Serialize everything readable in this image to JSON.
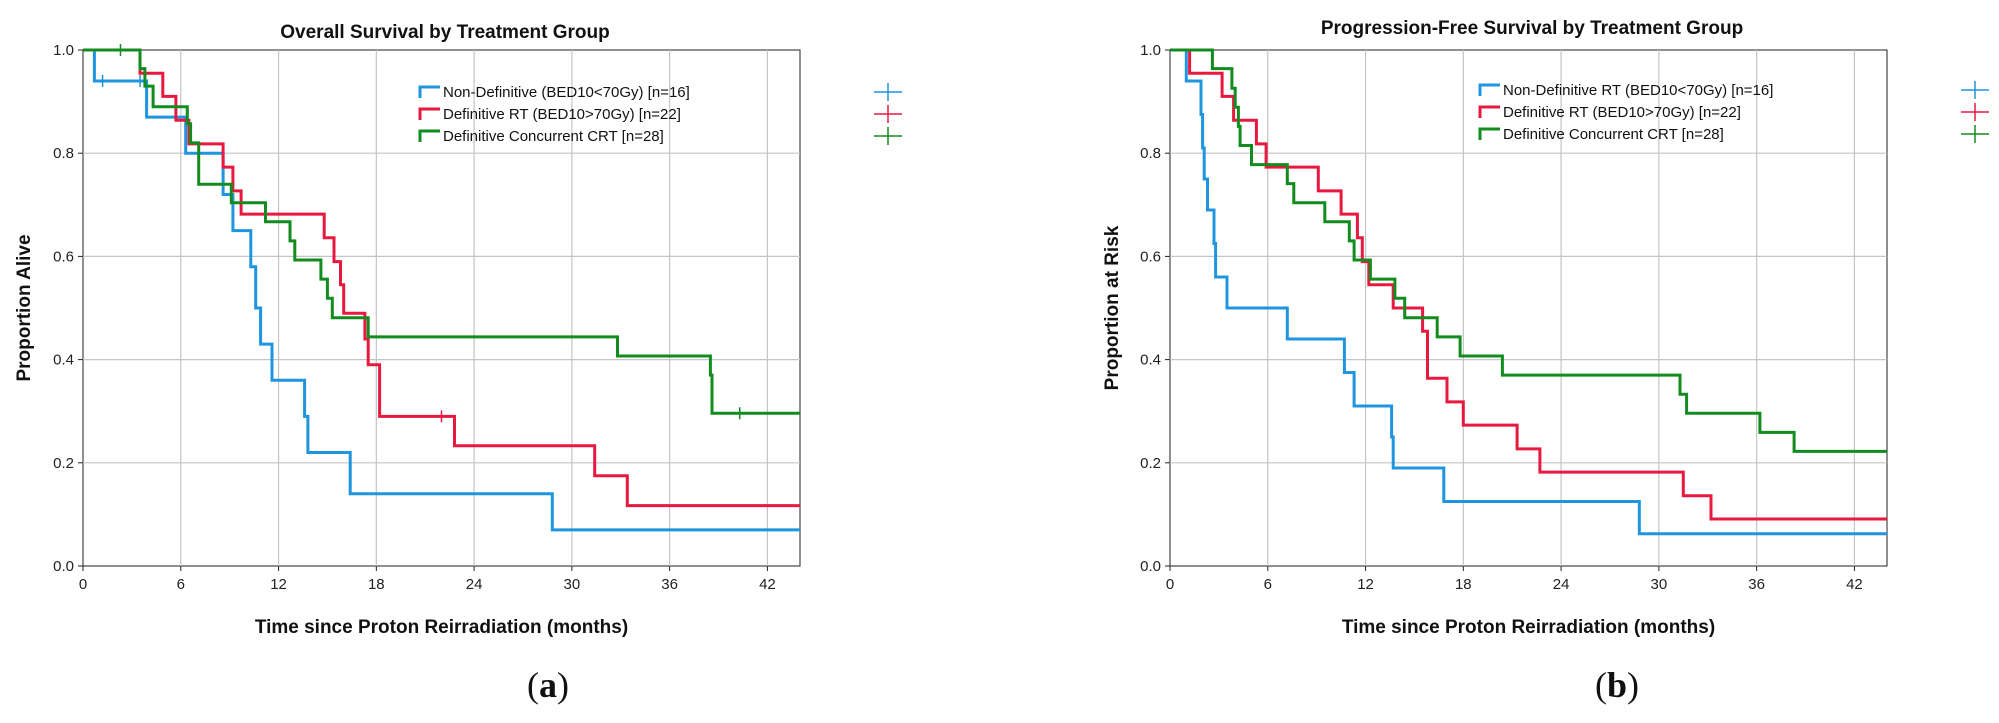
{
  "chart_data": [
    {
      "type": "line",
      "subtype": "kaplan-meier step",
      "caption_letter": "a",
      "title": "Overall Survival by Treatment Group",
      "xlabel": "Time since Proton Reirradiation (months)",
      "ylabel": "Proportion Alive",
      "xlim": [
        0,
        44
      ],
      "ylim": [
        0,
        1
      ],
      "xticks": [
        0,
        6,
        12,
        18,
        24,
        30,
        36,
        42
      ],
      "yticks": [
        "0.0",
        "0.2",
        "0.4",
        "0.6",
        "0.8",
        "1.0"
      ],
      "grid": true,
      "legend_position": "top-right",
      "series": [
        {
          "name": "Non-Definitive (BED10<70Gy) [n=16]",
          "color": "#1f95e0",
          "steps": [
            [
              0,
              1.0
            ],
            [
              0.7,
              0.94
            ],
            [
              3.9,
              0.87
            ],
            [
              6.3,
              0.8
            ],
            [
              8.6,
              0.72
            ],
            [
              9.2,
              0.65
            ],
            [
              10.3,
              0.58
            ],
            [
              10.6,
              0.5
            ],
            [
              10.9,
              0.43
            ],
            [
              11.6,
              0.36
            ],
            [
              13.6,
              0.29
            ],
            [
              13.8,
              0.22
            ],
            [
              16.4,
              0.14
            ],
            [
              28.8,
              0.07
            ],
            [
              44,
              0.07
            ]
          ],
          "censored": [
            [
              1.2,
              0.94
            ],
            [
              3.5,
              0.94
            ]
          ]
        },
        {
          "name": "Definitive RT (BED10>70Gy) [n=22]",
          "color": "#e8193f",
          "steps": [
            [
              0,
              1.0
            ],
            [
              3.5,
              0.955
            ],
            [
              4.9,
              0.91
            ],
            [
              5.7,
              0.864
            ],
            [
              6.5,
              0.818
            ],
            [
              8.6,
              0.773
            ],
            [
              9.2,
              0.727
            ],
            [
              9.7,
              0.682
            ],
            [
              14.8,
              0.636
            ],
            [
              15.4,
              0.59
            ],
            [
              15.8,
              0.545
            ],
            [
              16.0,
              0.49
            ],
            [
              17.3,
              0.44
            ],
            [
              17.5,
              0.39
            ],
            [
              18.2,
              0.29
            ],
            [
              22.8,
              0.233
            ],
            [
              31.4,
              0.175
            ],
            [
              33.4,
              0.117
            ],
            [
              44,
              0.117
            ]
          ],
          "censored": [
            [
              22.0,
              0.29
            ]
          ]
        },
        {
          "name": "Definitive Concurrent CRT [n=28]",
          "color": "#138c1f",
          "steps": [
            [
              0,
              1.0
            ],
            [
              3.5,
              0.964
            ],
            [
              3.8,
              0.93
            ],
            [
              4.3,
              0.89
            ],
            [
              6.4,
              0.857
            ],
            [
              6.6,
              0.82
            ],
            [
              7.1,
              0.74
            ],
            [
              9.1,
              0.704
            ],
            [
              11.2,
              0.667
            ],
            [
              12.7,
              0.63
            ],
            [
              13.0,
              0.593
            ],
            [
              14.6,
              0.556
            ],
            [
              15.0,
              0.519
            ],
            [
              15.3,
              0.481
            ],
            [
              17.5,
              0.444
            ],
            [
              32.8,
              0.407
            ],
            [
              38.5,
              0.37
            ],
            [
              38.6,
              0.296
            ],
            [
              44,
              0.296
            ]
          ],
          "censored": [
            [
              2.3,
              1.0
            ],
            [
              40.3,
              0.296
            ]
          ]
        }
      ]
    },
    {
      "type": "line",
      "subtype": "kaplan-meier step",
      "caption_letter": "b",
      "title": "Progression-Free Survival by Treatment Group",
      "xlabel": "Time since Proton Reirradiation (months)",
      "ylabel": "Proportion at Risk",
      "xlim": [
        0,
        44
      ],
      "ylim": [
        0,
        1
      ],
      "xticks": [
        0,
        6,
        12,
        18,
        24,
        30,
        36,
        42
      ],
      "yticks": [
        "0.0",
        "0.2",
        "0.4",
        "0.6",
        "0.8",
        "1.0"
      ],
      "grid": true,
      "legend_position": "top-right",
      "series": [
        {
          "name": "Non-Definitive RT (BED10<70Gy) [n=16]",
          "color": "#1f95e0",
          "steps": [
            [
              0,
              1.0
            ],
            [
              1.0,
              0.94
            ],
            [
              1.9,
              0.875
            ],
            [
              2.0,
              0.81
            ],
            [
              2.1,
              0.75
            ],
            [
              2.3,
              0.69
            ],
            [
              2.7,
              0.625
            ],
            [
              2.8,
              0.56
            ],
            [
              3.5,
              0.5
            ],
            [
              7.2,
              0.44
            ],
            [
              10.7,
              0.375
            ],
            [
              11.3,
              0.31
            ],
            [
              13.6,
              0.25
            ],
            [
              13.7,
              0.19
            ],
            [
              16.8,
              0.125
            ],
            [
              28.8,
              0.0625
            ],
            [
              44,
              0.0625
            ]
          ],
          "censored": []
        },
        {
          "name": "Definitive RT (BED10>70Gy) [n=22]",
          "color": "#e8193f",
          "steps": [
            [
              0,
              1.0
            ],
            [
              1.2,
              0.955
            ],
            [
              3.2,
              0.91
            ],
            [
              3.9,
              0.864
            ],
            [
              5.3,
              0.818
            ],
            [
              5.9,
              0.773
            ],
            [
              9.1,
              0.727
            ],
            [
              10.5,
              0.682
            ],
            [
              11.5,
              0.636
            ],
            [
              11.8,
              0.59
            ],
            [
              12.2,
              0.545
            ],
            [
              13.7,
              0.5
            ],
            [
              15.5,
              0.455
            ],
            [
              15.8,
              0.364
            ],
            [
              17.0,
              0.318
            ],
            [
              18.0,
              0.273
            ],
            [
              21.3,
              0.227
            ],
            [
              22.7,
              0.182
            ],
            [
              31.5,
              0.136
            ],
            [
              33.2,
              0.091
            ],
            [
              44,
              0.091
            ]
          ],
          "censored": []
        },
        {
          "name": "Definitive Concurrent CRT [n=28]",
          "color": "#138c1f",
          "steps": [
            [
              0,
              1.0
            ],
            [
              2.6,
              0.964
            ],
            [
              3.8,
              0.926
            ],
            [
              4.0,
              0.889
            ],
            [
              4.2,
              0.852
            ],
            [
              4.3,
              0.815
            ],
            [
              5.0,
              0.778
            ],
            [
              7.2,
              0.741
            ],
            [
              7.6,
              0.704
            ],
            [
              9.5,
              0.667
            ],
            [
              11.0,
              0.63
            ],
            [
              11.3,
              0.593
            ],
            [
              12.3,
              0.556
            ],
            [
              13.8,
              0.519
            ],
            [
              14.4,
              0.481
            ],
            [
              16.4,
              0.444
            ],
            [
              17.8,
              0.407
            ],
            [
              20.4,
              0.37
            ],
            [
              31.3,
              0.333
            ],
            [
              31.7,
              0.296
            ],
            [
              36.2,
              0.259
            ],
            [
              38.3,
              0.222
            ],
            [
              44,
              0.222
            ]
          ],
          "censored": []
        }
      ]
    }
  ]
}
